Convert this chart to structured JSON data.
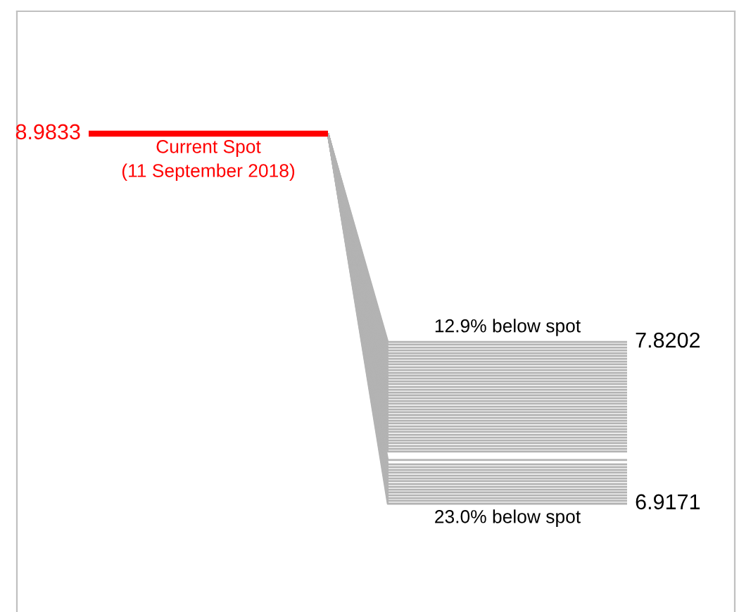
{
  "chart_data": {
    "type": "line",
    "categories": [
      null,
      null,
      null,
      null,
      null,
      null,
      null,
      null,
      null,
      null
    ],
    "annotations": [
      "Current Spot\n(11 September 2018)",
      "12.9% below spot",
      "23.0% below spot"
    ],
    "series": [
      {
        "color": "#ff0000",
        "values": [
          8.9833,
          8.9833,
          8.9833,
          8.9833,
          8.9833,
          null,
          null,
          null,
          null,
          null
        ],
        "value_labels": [
          "8.9833",
          null,
          null,
          null,
          null,
          null,
          null,
          null,
          null,
          null
        ]
      },
      {
        "color": "#b3b3b3",
        "values": [
          null,
          null,
          null,
          null,
          8.9833,
          7.8202,
          7.8202,
          7.8202,
          7.8202,
          7.8202
        ],
        "value_labels": [
          null,
          null,
          null,
          null,
          null,
          null,
          null,
          null,
          null,
          "7.8202"
        ]
      },
      {
        "color": "#b3b3b3",
        "values": [
          null,
          null,
          null,
          null,
          8.9833,
          7.805,
          7.805,
          7.805,
          7.805,
          7.805
        ]
      },
      {
        "color": "#b3b3b3",
        "values": [
          null,
          null,
          null,
          null,
          8.9833,
          7.789,
          7.789,
          7.789,
          7.789,
          7.789
        ]
      },
      {
        "color": "#b3b3b3",
        "values": [
          null,
          null,
          null,
          null,
          8.9833,
          7.773,
          7.773,
          7.773,
          7.773,
          7.773
        ]
      },
      {
        "color": "#b3b3b3",
        "values": [
          null,
          null,
          null,
          null,
          8.9833,
          7.757,
          7.757,
          7.757,
          7.757,
          7.757
        ]
      },
      {
        "color": "#b3b3b3",
        "values": [
          null,
          null,
          null,
          null,
          8.9833,
          7.742,
          7.742,
          7.742,
          7.742,
          7.742
        ]
      },
      {
        "color": "#b3b3b3",
        "values": [
          null,
          null,
          null,
          null,
          8.9833,
          7.726,
          7.726,
          7.726,
          7.726,
          7.726
        ]
      },
      {
        "color": "#b3b3b3",
        "values": [
          null,
          null,
          null,
          null,
          8.9833,
          7.71,
          7.71,
          7.71,
          7.71,
          7.71
        ]
      },
      {
        "color": "#b3b3b3",
        "values": [
          null,
          null,
          null,
          null,
          8.9833,
          7.695,
          7.695,
          7.695,
          7.695,
          7.695
        ]
      },
      {
        "color": "#b3b3b3",
        "values": [
          null,
          null,
          null,
          null,
          8.9833,
          7.679,
          7.679,
          7.679,
          7.679,
          7.679
        ]
      },
      {
        "color": "#b3b3b3",
        "values": [
          null,
          null,
          null,
          null,
          8.9833,
          7.663,
          7.663,
          7.663,
          7.663,
          7.663
        ]
      },
      {
        "color": "#b3b3b3",
        "values": [
          null,
          null,
          null,
          null,
          8.9833,
          7.647,
          7.647,
          7.647,
          7.647,
          7.647
        ]
      },
      {
        "color": "#b3b3b3",
        "values": [
          null,
          null,
          null,
          null,
          8.9833,
          7.632,
          7.632,
          7.632,
          7.632,
          7.632
        ]
      },
      {
        "color": "#b3b3b3",
        "values": [
          null,
          null,
          null,
          null,
          8.9833,
          7.616,
          7.616,
          7.616,
          7.616,
          7.616
        ]
      },
      {
        "color": "#b3b3b3",
        "values": [
          null,
          null,
          null,
          null,
          8.9833,
          7.6,
          7.6,
          7.6,
          7.6,
          7.6
        ]
      },
      {
        "color": "#b3b3b3",
        "values": [
          null,
          null,
          null,
          null,
          8.9833,
          7.585,
          7.585,
          7.585,
          7.585,
          7.585
        ]
      },
      {
        "color": "#b3b3b3",
        "values": [
          null,
          null,
          null,
          null,
          8.9833,
          7.569,
          7.569,
          7.569,
          7.569,
          7.569
        ]
      },
      {
        "color": "#b3b3b3",
        "values": [
          null,
          null,
          null,
          null,
          8.9833,
          7.553,
          7.553,
          7.553,
          7.553,
          7.553
        ]
      },
      {
        "color": "#b3b3b3",
        "values": [
          null,
          null,
          null,
          null,
          8.9833,
          7.537,
          7.537,
          7.537,
          7.537,
          7.537
        ]
      },
      {
        "color": "#b3b3b3",
        "values": [
          null,
          null,
          null,
          null,
          8.9833,
          7.522,
          7.522,
          7.522,
          7.522,
          7.522
        ]
      },
      {
        "color": "#b3b3b3",
        "values": [
          null,
          null,
          null,
          null,
          8.9833,
          7.506,
          7.506,
          7.506,
          7.506,
          7.506
        ]
      },
      {
        "color": "#b3b3b3",
        "values": [
          null,
          null,
          null,
          null,
          8.9833,
          7.49,
          7.49,
          7.49,
          7.49,
          7.49
        ]
      },
      {
        "color": "#b3b3b3",
        "values": [
          null,
          null,
          null,
          null,
          8.9833,
          7.475,
          7.475,
          7.475,
          7.475,
          7.475
        ]
      },
      {
        "color": "#b3b3b3",
        "values": [
          null,
          null,
          null,
          null,
          8.9833,
          7.459,
          7.459,
          7.459,
          7.459,
          7.459
        ]
      },
      {
        "color": "#b3b3b3",
        "values": [
          null,
          null,
          null,
          null,
          8.9833,
          7.443,
          7.443,
          7.443,
          7.443,
          7.443
        ]
      },
      {
        "color": "#b3b3b3",
        "values": [
          null,
          null,
          null,
          null,
          8.9833,
          7.428,
          7.428,
          7.428,
          7.428,
          7.428
        ]
      },
      {
        "color": "#b3b3b3",
        "values": [
          null,
          null,
          null,
          null,
          8.9833,
          7.412,
          7.412,
          7.412,
          7.412,
          7.412
        ]
      },
      {
        "color": "#b3b3b3",
        "values": [
          null,
          null,
          null,
          null,
          8.9833,
          7.396,
          7.396,
          7.396,
          7.396,
          7.396
        ]
      },
      {
        "color": "#b3b3b3",
        "values": [
          null,
          null,
          null,
          null,
          8.9833,
          7.38,
          7.38,
          7.38,
          7.38,
          7.38
        ]
      },
      {
        "color": "#b3b3b3",
        "values": [
          null,
          null,
          null,
          null,
          8.9833,
          7.365,
          7.365,
          7.365,
          7.365,
          7.365
        ]
      },
      {
        "color": "#b3b3b3",
        "values": [
          null,
          null,
          null,
          null,
          8.9833,
          7.349,
          7.349,
          7.349,
          7.349,
          7.349
        ]
      },
      {
        "color": "#b3b3b3",
        "values": [
          null,
          null,
          null,
          null,
          8.9833,
          7.333,
          7.333,
          7.333,
          7.333,
          7.333
        ]
      },
      {
        "color": "#b3b3b3",
        "values": [
          null,
          null,
          null,
          null,
          8.9833,
          7.318,
          7.318,
          7.318,
          7.318,
          7.318
        ]
      },
      {
        "color": "#b3b3b3",
        "values": [
          null,
          null,
          null,
          null,
          8.9833,
          7.302,
          7.302,
          7.302,
          7.302,
          7.302
        ]
      },
      {
        "color": "#b3b3b3",
        "values": [
          null,
          null,
          null,
          null,
          8.9833,
          7.286,
          7.286,
          7.286,
          7.286,
          7.286
        ]
      },
      {
        "color": "#b3b3b3",
        "values": [
          null,
          null,
          null,
          null,
          8.9833,
          7.27,
          7.27,
          7.27,
          7.27,
          7.27
        ]
      },
      {
        "color": "#b3b3b3",
        "values": [
          null,
          null,
          null,
          null,
          8.9833,
          7.255,
          7.255,
          7.255,
          7.255,
          7.255
        ]
      },
      {
        "color": "#b3b3b3",
        "values": [
          null,
          null,
          null,
          null,
          8.9833,
          7.239,
          7.239,
          7.239,
          7.239,
          7.239
        ]
      },
      {
        "color": "#b3b3b3",
        "values": [
          null,
          null,
          null,
          null,
          8.9833,
          7.223,
          7.223,
          7.223,
          7.223,
          7.223
        ]
      },
      {
        "color": "#b3b3b3",
        "values": [
          null,
          null,
          null,
          null,
          8.9833,
          7.208,
          7.208,
          7.208,
          7.208,
          7.208
        ]
      },
      {
        "color": "#b3b3b3",
        "values": [
          null,
          null,
          null,
          null,
          8.9833,
          7.161,
          7.161,
          7.161,
          7.161,
          7.161
        ]
      },
      {
        "color": "#b3b3b3",
        "values": [
          null,
          null,
          null,
          null,
          8.9833,
          7.137,
          7.137,
          7.137,
          7.137,
          7.137
        ]
      },
      {
        "color": "#b3b3b3",
        "values": [
          null,
          null,
          null,
          null,
          8.9833,
          7.121,
          7.121,
          7.121,
          7.121,
          7.121
        ]
      },
      {
        "color": "#b3b3b3",
        "values": [
          null,
          null,
          null,
          null,
          8.9833,
          7.105,
          7.105,
          7.105,
          7.105,
          7.105
        ]
      },
      {
        "color": "#b3b3b3",
        "values": [
          null,
          null,
          null,
          null,
          8.9833,
          7.09,
          7.09,
          7.09,
          7.09,
          7.09
        ]
      },
      {
        "color": "#b3b3b3",
        "values": [
          null,
          null,
          null,
          null,
          8.9833,
          7.074,
          7.074,
          7.074,
          7.074,
          7.074
        ]
      },
      {
        "color": "#b3b3b3",
        "values": [
          null,
          null,
          null,
          null,
          8.9833,
          7.058,
          7.058,
          7.058,
          7.058,
          7.058
        ]
      },
      {
        "color": "#b3b3b3",
        "values": [
          null,
          null,
          null,
          null,
          8.9833,
          7.043,
          7.043,
          7.043,
          7.043,
          7.043
        ]
      },
      {
        "color": "#b3b3b3",
        "values": [
          null,
          null,
          null,
          null,
          8.9833,
          7.027,
          7.027,
          7.027,
          7.027,
          7.027
        ]
      },
      {
        "color": "#b3b3b3",
        "values": [
          null,
          null,
          null,
          null,
          8.9833,
          7.011,
          7.011,
          7.011,
          7.011,
          7.011
        ]
      },
      {
        "color": "#b3b3b3",
        "values": [
          null,
          null,
          null,
          null,
          8.9833,
          6.995,
          6.995,
          6.995,
          6.995,
          6.995
        ]
      },
      {
        "color": "#b3b3b3",
        "values": [
          null,
          null,
          null,
          null,
          8.9833,
          6.98,
          6.98,
          6.98,
          6.98,
          6.98
        ]
      },
      {
        "color": "#b3b3b3",
        "values": [
          null,
          null,
          null,
          null,
          8.9833,
          6.964,
          6.964,
          6.964,
          6.964,
          6.964
        ]
      },
      {
        "color": "#b3b3b3",
        "values": [
          null,
          null,
          null,
          null,
          8.9833,
          6.948,
          6.948,
          6.948,
          6.948,
          6.948
        ]
      },
      {
        "color": "#b3b3b3",
        "values": [
          null,
          null,
          null,
          null,
          8.9833,
          6.933,
          6.933,
          6.933,
          6.933,
          6.933
        ]
      },
      {
        "color": "#b3b3b3",
        "values": [
          null,
          null,
          null,
          null,
          8.9833,
          6.9171,
          6.9171,
          6.9171,
          6.9171,
          6.9171
        ],
        "value_labels": [
          null,
          null,
          null,
          null,
          null,
          null,
          null,
          null,
          null,
          "6.9171"
        ]
      }
    ]
  }
}
